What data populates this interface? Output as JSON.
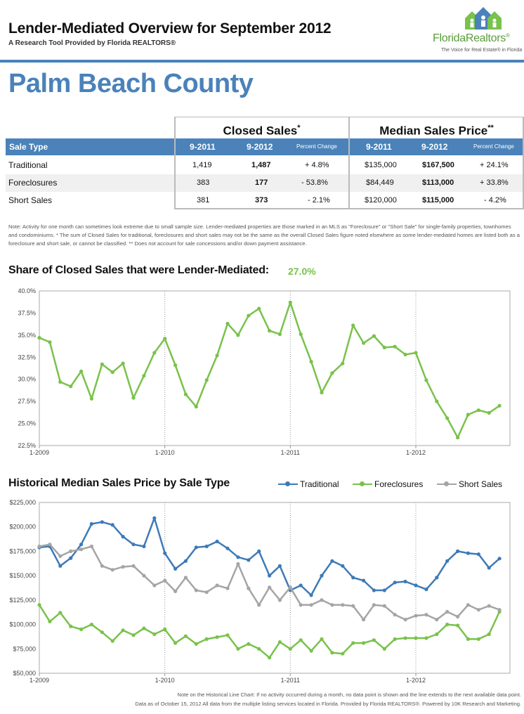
{
  "header": {
    "title": "Lender-Mediated Overview for September 2012",
    "subtitle": "A Research Tool Provided by Florida REALTORS®"
  },
  "logo": {
    "name_part1": "Florida",
    "name_part2": "Realtors",
    "reg": "®",
    "tagline": "The Voice for Real Estate® in Florida",
    "color": "#5a9d3c"
  },
  "county": "Palm Beach County",
  "table": {
    "group_closed": "Closed Sales",
    "group_closed_mark": "*",
    "group_price": "Median Sales Price",
    "group_price_mark": "**",
    "col_sale_type": "Sale Type",
    "col_2011": "9-2011",
    "col_2012": "9-2012",
    "col_pct": "Percent Change",
    "rows": [
      {
        "type": "Traditional",
        "cs_2011": "1,419",
        "cs_2012": "1,487",
        "cs_pct": "+ 4.8%",
        "mp_2011": "$135,000",
        "mp_2012": "$167,500",
        "mp_pct": "+ 24.1%"
      },
      {
        "type": "Foreclosures",
        "cs_2011": "383",
        "cs_2012": "177",
        "cs_pct": "- 53.8%",
        "mp_2011": "$84,449",
        "mp_2012": "$113,000",
        "mp_pct": "+ 33.8%"
      },
      {
        "type": "Short Sales",
        "cs_2011": "381",
        "cs_2012": "373",
        "cs_pct": "- 2.1%",
        "mp_2011": "$120,000",
        "mp_2012": "$115,000",
        "mp_pct": "- 4.2%"
      }
    ]
  },
  "note": "Note: Activity for one month can sometimes look extreme due to small sample size. Lender-mediated properties are those marked in an MLS as \"Foreclosure\" or \"Short Sale\" for single-family properties, townhomes and condominiums. * The sum of Closed Sales for traditional, foreclosures and short sales may not be the same as the overall Closed Sales figure noted elsewhere as some lender-mediated homes are listed both as a foreclosure and short sale, or cannot be classified. ** Does not account for sale concessions and/or down payment assistance.",
  "share_section": {
    "title": "Share of Closed Sales that were Lender-Mediated:",
    "value": "27.0%"
  },
  "hist_section": {
    "title": "Historical Median Sales Price by Sale Type"
  },
  "colors": {
    "accent": "#4a82b9",
    "traditional": "#3d7ab8",
    "foreclosures": "#79c24b",
    "short_sales": "#a5a5a5"
  },
  "chart_data": [
    {
      "type": "line",
      "title": "Share of Closed Sales that were Lender-Mediated:",
      "x_tick_labels": [
        "1-2009",
        "1-2010",
        "1-2011",
        "1-2012"
      ],
      "y_tick_labels": [
        "40.0%",
        "37.5%",
        "35.0%",
        "32.5%",
        "30.0%",
        "27.5%",
        "25.0%",
        "22.5%"
      ],
      "ylim": [
        22.5,
        40.0
      ],
      "x_start": "2009-01",
      "grid": "vertical dotted at January",
      "series": [
        {
          "color": "#79c24b",
          "values": [
            34.7,
            34.2,
            29.7,
            29.2,
            30.9,
            27.8,
            31.7,
            30.8,
            31.8,
            27.9,
            30.4,
            33.0,
            34.6,
            31.6,
            28.3,
            26.9,
            29.9,
            32.7,
            36.3,
            35.0,
            37.2,
            38.0,
            35.5,
            35.1,
            38.7,
            35.1,
            32.0,
            28.5,
            30.7,
            31.8,
            36.1,
            34.1,
            34.9,
            33.6,
            33.7,
            32.8,
            33.0,
            29.9,
            27.5,
            25.6,
            23.4,
            26.0,
            26.5,
            26.2,
            27.0
          ]
        }
      ]
    },
    {
      "type": "line",
      "title": "Historical Median Sales Price by Sale Type",
      "x_tick_labels": [
        "1-2009",
        "1-2010",
        "1-2011",
        "1-2012"
      ],
      "y_tick_labels": [
        "$225,000",
        "$200,000",
        "$175,000",
        "$150,000",
        "$125,000",
        "$100,000",
        "$75,000",
        "$50,000"
      ],
      "ylim": [
        50000,
        225000
      ],
      "x_start": "2009-01",
      "legend": "top-right",
      "series": [
        {
          "name": "Traditional",
          "color": "#3d7ab8",
          "values": [
            179000,
            180000,
            160000,
            168000,
            182000,
            203000,
            205000,
            202000,
            190000,
            182000,
            180000,
            209000,
            173000,
            157000,
            165000,
            179000,
            180000,
            185000,
            178000,
            169000,
            166000,
            175000,
            150000,
            160000,
            135000,
            140000,
            130000,
            150000,
            165000,
            160000,
            148000,
            145000,
            135000,
            135000,
            143000,
            144000,
            140000,
            136000,
            148000,
            165000,
            175000,
            173000,
            172000,
            158000,
            167500
          ]
        },
        {
          "name": "Foreclosures",
          "color": "#79c24b",
          "values": [
            120000,
            103000,
            112000,
            98000,
            95000,
            100000,
            92000,
            83000,
            94000,
            89000,
            96000,
            90000,
            95000,
            81000,
            88000,
            80000,
            85000,
            87000,
            89000,
            75000,
            80000,
            75000,
            66000,
            82000,
            75000,
            84000,
            73000,
            85000,
            71000,
            70000,
            81000,
            81000,
            84000,
            75000,
            85000,
            86000,
            86000,
            86000,
            90000,
            100000,
            99000,
            85000,
            85000,
            90000,
            113000
          ]
        },
        {
          "name": "Short Sales",
          "color": "#a5a5a5",
          "values": [
            180000,
            182000,
            170000,
            175000,
            177000,
            180000,
            160000,
            156000,
            159000,
            160000,
            150000,
            140000,
            145000,
            134000,
            148000,
            135000,
            133000,
            140000,
            137000,
            162000,
            137000,
            120000,
            138000,
            125000,
            138000,
            120000,
            120000,
            125000,
            120000,
            120000,
            119000,
            105000,
            120000,
            119000,
            110000,
            105000,
            109000,
            110000,
            105000,
            113000,
            108000,
            120000,
            115000,
            119000,
            115000
          ]
        }
      ]
    }
  ],
  "footer": {
    "line1": "Note on the Historical Line Chart: If no activity occurred during a month, no data point is shown and the line extends to the next available data point.",
    "line2": "Data as of October 15, 2012 All data from the multiple listing services located in Florida. Provided by Florida REALTORS®. Powered by 10K Research and Marketing."
  }
}
